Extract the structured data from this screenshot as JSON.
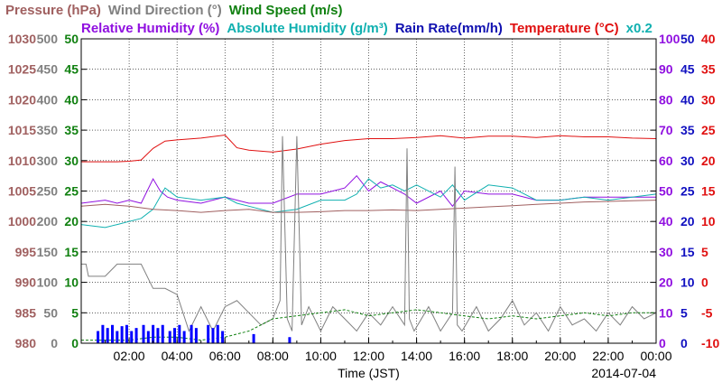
{
  "header": {
    "row1": [
      {
        "text": "Pressure (hPa)",
        "color": "#a06060"
      },
      {
        "text": "Wind Direction (°)",
        "color": "#808080"
      },
      {
        "text": "Wind Speed (m/s)",
        "color": "#108010"
      }
    ],
    "row2": [
      {
        "text": "Relative Humidity (%)",
        "color": "#9010e0"
      },
      {
        "text": "Absolute Humidity (g/m³)",
        "color": "#10b0b0"
      },
      {
        "text": "Rain Rate(mm/h)",
        "color": "#1010b0"
      },
      {
        "text": "Temperature (°C)",
        "color": "#e01010"
      },
      {
        "text": "x0.2",
        "color": "#10b0b0"
      }
    ]
  },
  "chart_data": {
    "type": "line",
    "xlabel": "Time (JST)",
    "date_label": "2014-07-04",
    "x_range": [
      0,
      24
    ],
    "x_ticks": [
      "02:00",
      "04:00",
      "06:00",
      "08:00",
      "10:00",
      "12:00",
      "14:00",
      "16:00",
      "18:00",
      "20:00",
      "22:00",
      "00:00"
    ],
    "grid": true,
    "axes": [
      {
        "name": "pressure",
        "color": "#a06060",
        "side": "left",
        "range": [
          980,
          1030
        ],
        "ticks": [
          "1030",
          "1025",
          "1020",
          "1015",
          "1010",
          "1005",
          "1000",
          "995",
          "990",
          "985",
          "980"
        ]
      },
      {
        "name": "wind_direction",
        "color": "#808080",
        "side": "left",
        "range": [
          0,
          500
        ],
        "ticks": [
          "500",
          "450",
          "400",
          "350",
          "300",
          "250",
          "200",
          "150",
          "100",
          "50",
          "0"
        ]
      },
      {
        "name": "wind_speed",
        "color": "#108010",
        "side": "left",
        "range": [
          0,
          50
        ],
        "ticks": [
          "50",
          "45",
          "40",
          "35",
          "30",
          "25",
          "20",
          "15",
          "10",
          "5",
          "0"
        ]
      },
      {
        "name": "relative_humidity",
        "color": "#9010e0",
        "side": "right",
        "range": [
          0,
          100
        ],
        "ticks": [
          "100",
          "90",
          "80",
          "70",
          "60",
          "50",
          "40",
          "30",
          "20",
          "10",
          "0"
        ]
      },
      {
        "name": "rain_rate",
        "color": "#1010c0",
        "side": "right",
        "range": [
          0,
          50
        ],
        "ticks": [
          "50",
          "45",
          "40",
          "35",
          "30",
          "25",
          "20",
          "15",
          "10",
          "5",
          "0"
        ]
      },
      {
        "name": "temperature",
        "color": "#e01010",
        "side": "right",
        "range": [
          -10,
          40
        ],
        "ticks": [
          "40",
          "35",
          "30",
          "25",
          "20",
          "15",
          "10",
          "5",
          "0",
          "-5",
          "-10"
        ]
      }
    ],
    "series": [
      {
        "name": "Temperature",
        "color": "#e01010",
        "axis": "temperature",
        "x": [
          0,
          1,
          1.5,
          2,
          2.5,
          3,
          3.5,
          4,
          5,
          6,
          6.5,
          7,
          8,
          9,
          10,
          11,
          12,
          13,
          14,
          15,
          16,
          17,
          18,
          19,
          20,
          21,
          22,
          23,
          24
        ],
        "values": [
          19.8,
          19.8,
          19.8,
          19.9,
          20.1,
          22,
          23.2,
          23.4,
          23.7,
          24.2,
          22.1,
          21.7,
          21.4,
          21.9,
          22.7,
          23.3,
          23.6,
          23.6,
          23.8,
          24.1,
          23.7,
          24,
          24,
          23.8,
          24.1,
          23.9,
          23.9,
          23.7,
          23.6
        ]
      },
      {
        "name": "Relative Humidity",
        "color": "#9010e0",
        "axis": "relative_humidity",
        "x": [
          0,
          1,
          1.5,
          2,
          2.5,
          3,
          3.3,
          3.6,
          4,
          5,
          6,
          6.5,
          7,
          8,
          9,
          10,
          11,
          11.5,
          12,
          12.5,
          13,
          13.5,
          14,
          15,
          15.5,
          16,
          17,
          18,
          19,
          20,
          21,
          22,
          23,
          24
        ],
        "values": [
          46,
          47,
          46,
          47,
          46,
          54,
          50,
          48,
          47,
          46,
          48,
          47,
          46,
          46,
          49,
          49,
          51,
          55,
          50,
          53,
          51,
          49,
          46,
          50,
          45,
          50,
          49,
          49,
          47,
          47,
          48,
          48,
          48,
          48
        ]
      },
      {
        "name": "Absolute Humidity",
        "color": "#10b0b0",
        "axis": "relative_humidity",
        "x": [
          0,
          1,
          1.5,
          2,
          2.5,
          3,
          3.5,
          4,
          5,
          6,
          6.5,
          7,
          8,
          9,
          10,
          11,
          11.5,
          12,
          12.5,
          13,
          13.5,
          14,
          15,
          15.5,
          16,
          17,
          18,
          19,
          20,
          21,
          22,
          23,
          24
        ],
        "values": [
          39,
          38,
          39,
          40,
          41,
          44,
          51,
          48,
          47,
          48,
          46,
          45,
          43,
          44,
          47,
          47,
          49,
          54,
          51,
          52,
          50,
          52,
          48,
          52,
          47,
          52,
          51,
          47,
          47,
          48,
          47,
          48,
          49
        ]
      },
      {
        "name": "Pressure",
        "color": "#a06060",
        "axis": "pressure",
        "x": [
          0,
          1,
          2,
          3,
          4,
          5,
          6,
          7,
          8,
          9,
          10,
          11,
          12,
          13,
          14,
          15,
          16,
          17,
          18,
          19,
          20,
          21,
          22,
          23,
          24
        ],
        "values": [
          1002.5,
          1002.8,
          1002.5,
          1002,
          1001.8,
          1001.5,
          1001.8,
          1002,
          1001.5,
          1001.5,
          1001.6,
          1001.8,
          1001.8,
          1001.9,
          1001.8,
          1002,
          1002.2,
          1002.4,
          1002.6,
          1002.8,
          1003,
          1003.2,
          1003.3,
          1003.4,
          1003.5
        ]
      },
      {
        "name": "Wind Direction",
        "color": "#808080",
        "axis": "wind_direction",
        "x": [
          0,
          0.2,
          0.3,
          1,
          1.5,
          2,
          2.5,
          3,
          3.5,
          4,
          4.5,
          5,
          5.5,
          6,
          6.5,
          7,
          7.5,
          8,
          8.3,
          8.4,
          8.6,
          8.8,
          9,
          9.2,
          9.5,
          10,
          10.5,
          11,
          11.5,
          12,
          12.5,
          13,
          13.5,
          13.6,
          13.7,
          13.9,
          14.5,
          15,
          15.5,
          15.6,
          15.7,
          15.9,
          16.5,
          17,
          17.5,
          18,
          18.5,
          19,
          19.5,
          20,
          20.5,
          21,
          21.5,
          22,
          22.5,
          23,
          23.5,
          24
        ],
        "values": [
          130,
          130,
          110,
          110,
          130,
          130,
          130,
          90,
          90,
          80,
          20,
          60,
          20,
          60,
          70,
          50,
          30,
          40,
          70,
          340,
          40,
          20,
          340,
          30,
          60,
          20,
          60,
          40,
          20,
          50,
          30,
          60,
          30,
          320,
          40,
          20,
          60,
          20,
          50,
          290,
          30,
          20,
          60,
          20,
          40,
          70,
          30,
          50,
          20,
          60,
          30,
          40,
          20,
          50,
          30,
          60,
          40,
          50
        ]
      },
      {
        "name": "Wind Speed",
        "color": "#108010",
        "axis": "wind_speed",
        "x": [
          0,
          1,
          2,
          3,
          4,
          5,
          6,
          6.5,
          7,
          7.5,
          8,
          9,
          10,
          11,
          12,
          13,
          14,
          15,
          16,
          17,
          18,
          19,
          20,
          21,
          22,
          23,
          24
        ],
        "values": [
          0.5,
          0.5,
          0.5,
          1,
          1,
          0.5,
          1,
          1.5,
          2,
          3,
          4,
          4.5,
          5,
          5.5,
          4.5,
          5,
          5.5,
          5,
          4.5,
          4,
          4.5,
          4,
          4.5,
          5,
          4.5,
          5,
          5
        ]
      },
      {
        "name": "Rain Rate",
        "color": "#0000ff",
        "axis": "rain_rate",
        "x": [
          0.7,
          0.9,
          1.1,
          1.3,
          1.5,
          1.7,
          1.9,
          2.1,
          2.3,
          2.6,
          2.8,
          3,
          3.2,
          3.4,
          3.7,
          3.9,
          4.1,
          4.3,
          4.6,
          4.8,
          5.3,
          5.5,
          5.7,
          5.9,
          7.2,
          8.7
        ],
        "values": [
          2,
          3,
          2.5,
          3,
          2,
          2.8,
          3,
          2,
          2.5,
          3,
          2,
          3,
          2.5,
          3,
          2,
          2.5,
          3,
          2,
          3,
          2.5,
          3,
          2.5,
          3,
          2,
          1.5,
          1
        ]
      }
    ]
  }
}
